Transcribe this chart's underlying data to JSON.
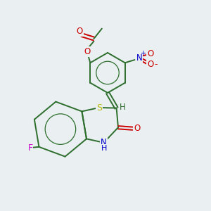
{
  "background_color": "#eaeff2",
  "bond_color": "#2d6e2d",
  "atom_colors": {
    "O": "#cc0000",
    "N": "#0000cc",
    "S": "#b8b800",
    "F": "#cc00cc",
    "H": "#2d6e2d",
    "C": "#2d6e2d"
  },
  "figsize": [
    3.0,
    3.0
  ],
  "dpi": 100
}
